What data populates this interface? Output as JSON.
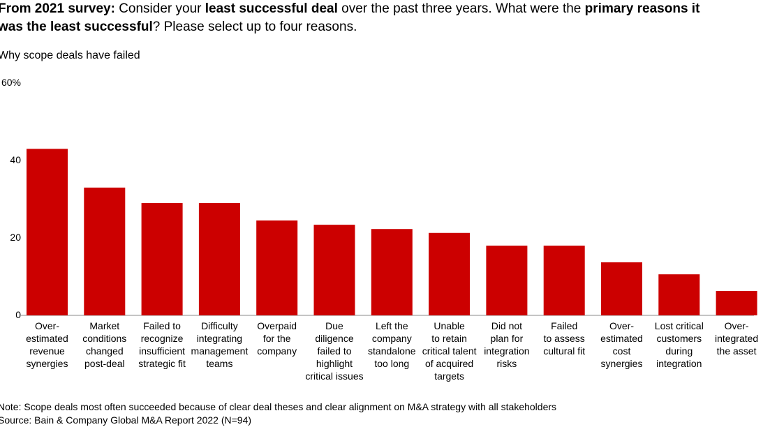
{
  "chart_data": {
    "type": "bar",
    "title": [
      "From 2021 survey:",
      " Consider your ",
      "least successful deal",
      " over the past three years. What were the ",
      "primary reasons it was the least successful",
      "? Please select up to four reasons."
    ],
    "subtitle": "Why scope deals have failed",
    "categories": [
      "Over-\nestimated\nrevenue\nsynergies",
      "Market\nconditions\nchanged\npost-deal",
      "Failed to\nrecognize\ninsufficient\nstrategic fit",
      "Difficulty\nintegrating\nmanagement\nteams",
      "Overpaid\nfor the\ncompany",
      "Due\ndiligence\nfailed to\nhighlight\ncritical issues",
      "Left the\ncompany\nstandalone\ntoo long",
      "Unable\nto retain\ncritical talent\nof acquired\ntargets",
      "Did not\nplan for\nintegration\nrisks",
      "Failed\nto assess\ncultural fit",
      "Over-\nestimated\ncost\nsynergies",
      "Lost critical\ncustomers\nduring\nintegration",
      "Over-\nintegrated\nthe asset"
    ],
    "values": [
      43,
      33,
      29,
      29,
      24.5,
      23.4,
      22.3,
      21.3,
      18,
      18,
      13.7,
      10.6,
      6.3
    ],
    "color": "#cc0000",
    "ylim": [
      0,
      60
    ],
    "yticks": [
      0,
      20,
      40,
      {
        "value": 60,
        "label": "60%"
      }
    ],
    "note": "Note: Scope deals most often succeeded because of clear deal theses and clear alignment on M&A strategy with all stakeholders",
    "source": "Source: Bain & Company Global M&A Report 2022 (N=94)"
  }
}
